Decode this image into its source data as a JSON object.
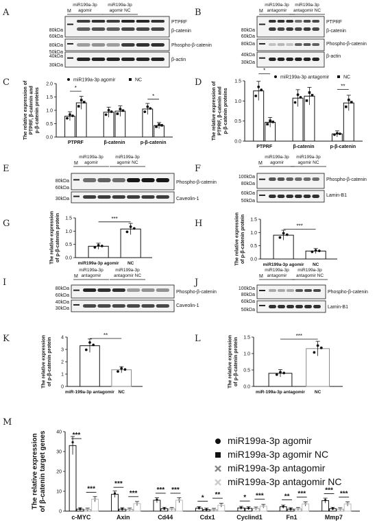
{
  "panel_letters": [
    "A",
    "B",
    "C",
    "D",
    "E",
    "F",
    "G",
    "H",
    "I",
    "J",
    "K",
    "L",
    "M"
  ],
  "blots": {
    "A": {
      "lane_m": "M",
      "groups": [
        "miR199a-3p agomir",
        "miR199a-3p agomir NC"
      ],
      "group_lines": [
        [
          "miR199a-3p",
          "agomir"
        ],
        [
          "miR199a-3p",
          "agomir NC"
        ]
      ],
      "bands": [
        "PTPRF",
        "β-catenin",
        "Phospho-β-catenin",
        "β-actin"
      ],
      "markers": [
        "80kDa",
        "60kDa",
        "80kDa",
        "50kDa",
        "40kDa",
        "30kDa"
      ]
    },
    "B": {
      "lane_m": "M",
      "group_lines": [
        [
          "miR199a-3p",
          "antagomir"
        ],
        [
          "miR199a-3p",
          "antagomir NC"
        ]
      ],
      "bands": [
        "PTPRF",
        "β-catenin",
        "Phospho-β-catenin",
        "β-actin"
      ],
      "markers": [
        "80kDa",
        "60kDa",
        "80kDa",
        "40kDa",
        "30kDa"
      ]
    },
    "E": {
      "lane_m": "M",
      "group_lines": [
        [
          "miR199a-3p",
          "agomir"
        ],
        [
          "miR199a-3p",
          "agomir NC"
        ]
      ],
      "bands": [
        "Phospho-β-catenin",
        "Caveolin-1"
      ],
      "markers": [
        "80kDa",
        "60kDa",
        "30kDa"
      ]
    },
    "F": {
      "lane_m": "M",
      "group_lines": [
        [
          "miR199a-3p",
          "agomir"
        ],
        [
          "miR199a-3p",
          "agomir NC"
        ]
      ],
      "bands": [
        "Phospho-β-catenin",
        "Lamin-B1"
      ],
      "markers": [
        "100kDa",
        "80kDa",
        "60kDa",
        "50kDa"
      ]
    },
    "I": {
      "lane_m": "M",
      "group_lines": [
        [
          "miR199a-3p",
          "antagomir"
        ],
        [
          "miR199a-3p",
          "antagomir NC"
        ]
      ],
      "bands": [
        "Phospho-β-catenin",
        "Caveolin-1"
      ],
      "markers": [
        "80kDa",
        "60kDa",
        "40kDa",
        "30kDa"
      ]
    },
    "J": {
      "lane_m": "M",
      "group_lines": [
        [
          "miR199a-3p",
          "antagomir"
        ],
        [
          "miR199a-3p",
          "antagomir NC"
        ]
      ],
      "bands": [
        "Phospho-β-catenin",
        "Lamin-B1"
      ],
      "markers": [
        "100kDa",
        "80kDa",
        "60kDa",
        "50kDa"
      ]
    }
  },
  "chart_data": [
    {
      "panel": "C",
      "type": "bar",
      "ylabel_lines": [
        "The relative expression of",
        "PTPRF, β-catenin and",
        "p-β-catenin proteins"
      ],
      "categories": [
        "PTPRF",
        "β-catenin",
        "p-β-catenin"
      ],
      "series": [
        {
          "name": "miR199a-3p agomir",
          "values": [
            0.78,
            0.93,
            1.05
          ]
        },
        {
          "name": "NC",
          "values": [
            1.28,
            0.97,
            0.43
          ]
        }
      ],
      "ylim": [
        0,
        2.0
      ],
      "yticks": [
        "0.0",
        "0.5",
        "1.0",
        "1.5",
        "2.0"
      ],
      "sig": [
        "*",
        "",
        "*"
      ],
      "legend": "top"
    },
    {
      "panel": "D",
      "type": "bar",
      "ylabel_lines": [
        "The relative expression of",
        "PTPRF, β-catenin and",
        "p-β-catenin proteins"
      ],
      "categories": [
        "PTPRF",
        "β-catenin",
        "p-β-catenin"
      ],
      "series": [
        {
          "name": "miR199a-3p antagomir",
          "values": [
            1.25,
            1.07,
            0.18
          ]
        },
        {
          "name": "NC",
          "values": [
            0.47,
            1.12,
            0.95
          ]
        }
      ],
      "ylim": [
        0,
        1.5
      ],
      "yticks": [
        "0.0",
        "0.5",
        "1.0",
        "1.5"
      ],
      "sig": [
        "*",
        "",
        "**"
      ],
      "legend": "top"
    },
    {
      "panel": "G",
      "type": "bar",
      "ylabel_lines": [
        "The relative expression",
        "of p-β-catenin protein"
      ],
      "categories": [
        "miR199a-3p agomir",
        "NC"
      ],
      "values": [
        0.43,
        1.08
      ],
      "ylim": [
        0,
        1.5
      ],
      "yticks": [
        "0.0",
        "0.5",
        "1.0",
        "1.5"
      ],
      "sig": "***"
    },
    {
      "panel": "H",
      "type": "bar",
      "ylabel_lines": [
        "The relative expression",
        "of p-β-catenin protein"
      ],
      "categories": [
        "miR199a-3p agomir",
        "NC"
      ],
      "values": [
        0.9,
        0.3
      ],
      "ylim": [
        0,
        1.5
      ],
      "yticks": [
        "0.0",
        "0.5",
        "1.0",
        "1.5"
      ],
      "sig": "***"
    },
    {
      "panel": "K",
      "type": "bar",
      "ylabel_lines": [
        "The relative expression",
        "of p-β-catenin protein"
      ],
      "categories": [
        "miR-199a-3p antagomir",
        "NC"
      ],
      "values": [
        3.3,
        1.35
      ],
      "ylim": [
        0,
        4
      ],
      "yticks": [
        "0",
        "1",
        "2",
        "3",
        "4"
      ],
      "sig": "**"
    },
    {
      "panel": "L",
      "type": "bar",
      "ylabel_lines": [
        "The relative expression",
        "of p-β-catenin protein"
      ],
      "categories": [
        "miR-199a-3p antagomir",
        "NC"
      ],
      "values": [
        0.4,
        1.15
      ],
      "ylim": [
        0,
        1.5
      ],
      "yticks": [
        "0.0",
        "0.5",
        "1.0",
        "1.5"
      ],
      "sig": "***"
    },
    {
      "panel": "M",
      "type": "bar",
      "ylabel_lines": [
        "The relative expression",
        "of β-catenin target genes"
      ],
      "categories": [
        "c-MYC",
        "Axin",
        "Cd44",
        "Cdx1",
        "Cyclind1",
        "Fn1",
        "Mmp7"
      ],
      "series": [
        {
          "name": "miR199a-3p agomir",
          "values": [
            33,
            8.5,
            5.5,
            1.5,
            1.6,
            2.2,
            5.3
          ]
        },
        {
          "name": "miR199a-3p agomir NC",
          "values": [
            1,
            1,
            1.2,
            0.8,
            1.4,
            1.0,
            1.2
          ]
        },
        {
          "name": "miR199a-3p antagomir",
          "values": [
            0.8,
            0.9,
            1.1,
            0.7,
            1.3,
            1.1,
            1.0
          ]
        },
        {
          "name": "miR199a-3p antagomir NC",
          "values": [
            6,
            3.8,
            5.5,
            3.0,
            2.5,
            3.6,
            3.6
          ]
        }
      ],
      "ylim": [
        0,
        40
      ],
      "yticks": [
        "0",
        "10",
        "20",
        "30",
        "40"
      ],
      "sig_pairs": [
        [
          "***",
          "***"
        ],
        [
          "***",
          "***"
        ],
        [
          "***",
          "***"
        ],
        [
          "*",
          "**"
        ],
        [
          "*",
          "***"
        ],
        [
          "**",
          "***"
        ],
        [
          "***",
          "***"
        ]
      ]
    }
  ]
}
